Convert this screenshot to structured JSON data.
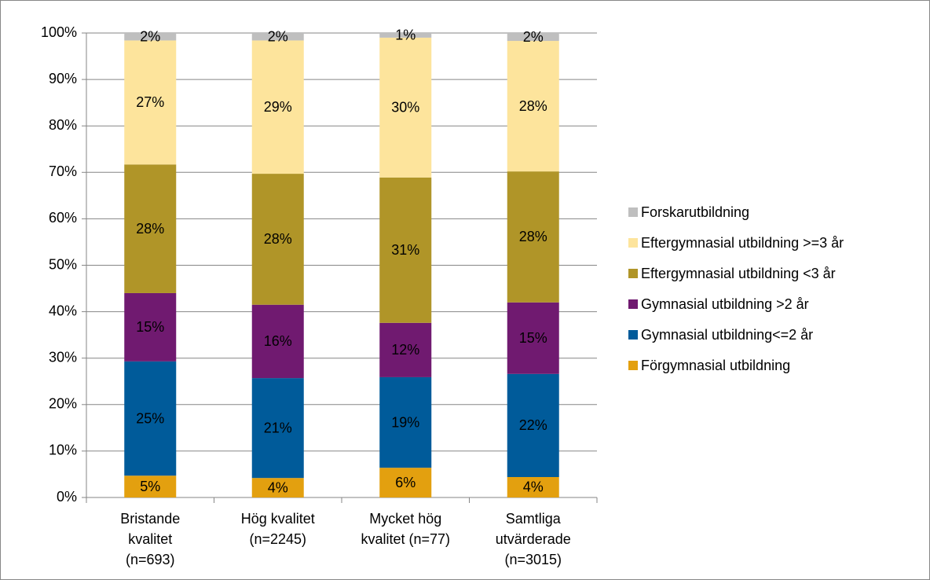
{
  "chart_data": {
    "type": "stacked_bar",
    "categories": [
      [
        "Bristande",
        "kvalitet",
        "(n=693)"
      ],
      [
        "Hög kvalitet",
        "(n=2245)"
      ],
      [
        "Mycket hög",
        "kvalitet (n=77)"
      ],
      [
        "Samtliga",
        "utvärderade",
        "(n=3015)"
      ]
    ],
    "series": [
      {
        "name": "Förgymnasial utbildning",
        "color": "#e3a00f",
        "values": [
          4.7,
          4.2,
          6.4,
          4.4
        ],
        "value_labels": [
          "5%",
          "4%",
          "6%",
          "4%"
        ]
      },
      {
        "name": "Gymnasial utbildning<=2 år",
        "color": "#005b9a",
        "values": [
          24.6,
          21.5,
          19.5,
          22.2
        ],
        "value_labels": [
          "25%",
          "21%",
          "19%",
          "22%"
        ]
      },
      {
        "name": "Gymnasial utbildning >2 år",
        "color": "#701a70",
        "values": [
          14.7,
          15.8,
          11.7,
          15.4
        ],
        "value_labels": [
          "15%",
          "16%",
          "12%",
          "15%"
        ]
      },
      {
        "name": "Eftergymnasial utbildning <3 år",
        "color": "#b09528",
        "values": [
          27.7,
          28.2,
          31.3,
          28.2
        ],
        "value_labels": [
          "28%",
          "28%",
          "31%",
          "28%"
        ]
      },
      {
        "name": "Eftergymnasial utbildning >=3 år",
        "color": "#fde49c",
        "values": [
          26.7,
          28.7,
          30.1,
          28.1
        ],
        "value_labels": [
          "27%",
          "29%",
          "30%",
          "28%"
        ]
      },
      {
        "name": "Forskarutbildning",
        "color": "#bfbfbf",
        "values": [
          1.6,
          1.6,
          1.0,
          1.7
        ],
        "value_labels": [
          "2%",
          "2%",
          "1%",
          "2%"
        ]
      }
    ],
    "ylim": [
      0,
      100
    ],
    "yticks": [
      {
        "value": 0,
        "label": "0%"
      },
      {
        "value": 10,
        "label": "10%"
      },
      {
        "value": 20,
        "label": "20%"
      },
      {
        "value": 30,
        "label": "30%"
      },
      {
        "value": 40,
        "label": "40%"
      },
      {
        "value": 50,
        "label": "50%"
      },
      {
        "value": 60,
        "label": "60%"
      },
      {
        "value": 70,
        "label": "70%"
      },
      {
        "value": 80,
        "label": "80%"
      },
      {
        "value": 90,
        "label": "90%"
      },
      {
        "value": 100,
        "label": "100%"
      }
    ],
    "grid": true,
    "legend": "right"
  }
}
